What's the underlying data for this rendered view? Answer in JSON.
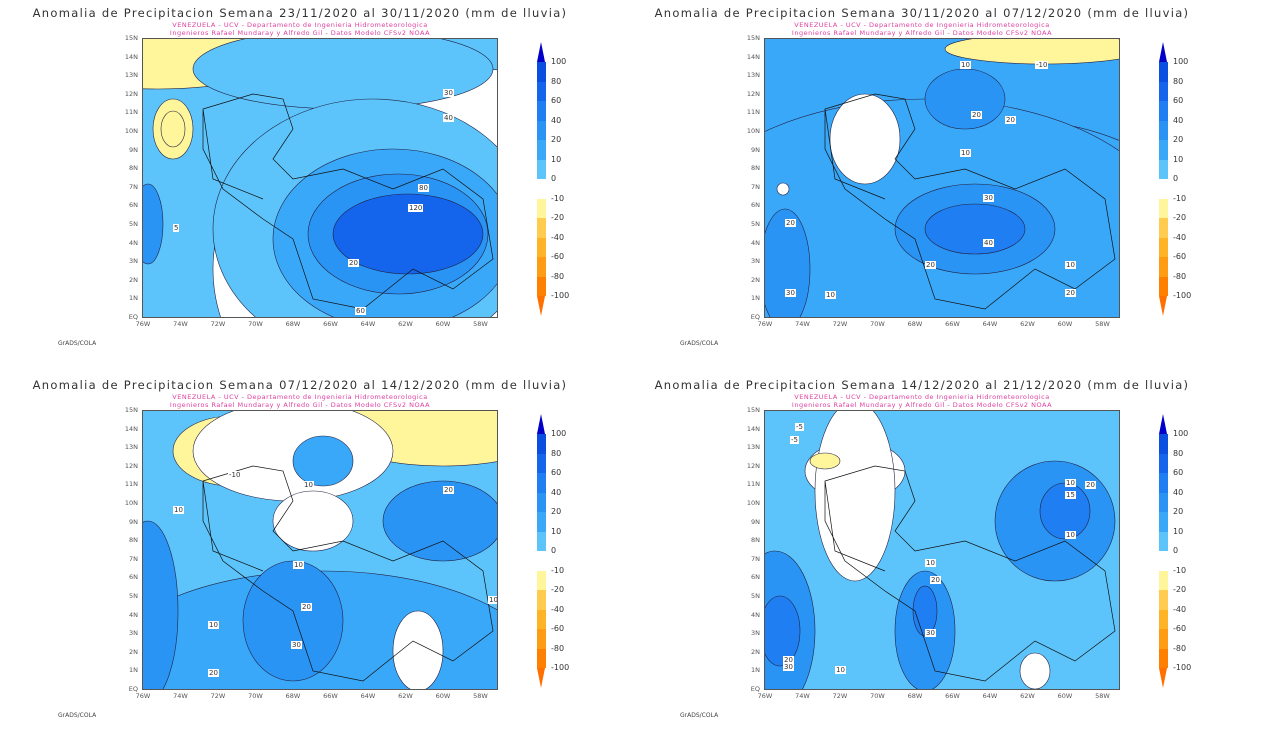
{
  "subtitle_line1": "VENEZUELA - UCV - Departamento de Ingenieria Hidrometeorologica",
  "subtitle_line2": "Ingenieros Rafael Mundaray y Alfredo Gil - Datos Modelo CFSv2 NOAA",
  "credit": "GrADS/COLA",
  "y_ticks": [
    "15N",
    "14N",
    "13N",
    "12N",
    "11N",
    "10N",
    "9N",
    "8N",
    "7N",
    "6N",
    "5N",
    "4N",
    "3N",
    "2N",
    "1N",
    "EQ"
  ],
  "x_ticks": [
    "76W",
    "74W",
    "72W",
    "70W",
    "68W",
    "66W",
    "64W",
    "62W",
    "60W",
    "58W"
  ],
  "colorbar": {
    "labels": [
      "100",
      "80",
      "60",
      "40",
      "20",
      "10",
      "0",
      "-10",
      "-20",
      "-40",
      "-60",
      "-80",
      "-100"
    ],
    "colors": [
      "#0a4fe0",
      "#1464ec",
      "#1e7ef2",
      "#2a94f5",
      "#3aa8f8",
      "#5cc4fb",
      "#ffffff",
      "#fff59a",
      "#ffcc50",
      "#ffb428",
      "#ff9c14",
      "#ff8000"
    ],
    "arrow_top": "#0000c8",
    "arrow_bottom": "#ff7000"
  },
  "panels": [
    {
      "title": "Anomalia de Precipitacion Semana 23/11/2020 al 30/11/2020 (mm de lluvia)",
      "base": "#5cc4fb",
      "contour_labels": [
        "30",
        "40",
        "80",
        "120",
        "20",
        "60",
        "5"
      ]
    },
    {
      "title": "Anomalia de Precipitacion Semana 30/11/2020 al 07/12/2020 (mm de lluvia)",
      "base": "#3aa8f8",
      "contour_labels": [
        "10",
        "20",
        "20",
        "10",
        "30",
        "40",
        "20",
        "10",
        "20",
        "30",
        "20",
        "10",
        "-10"
      ]
    },
    {
      "title": "Anomalia de Precipitacion Semana 07/12/2020 al 14/12/2020 (mm de lluvia)",
      "base": "#5cc4fb",
      "contour_labels": [
        "10",
        "10",
        "20",
        "10",
        "20",
        "30",
        "10",
        "20",
        "10",
        "-10"
      ]
    },
    {
      "title": "Anomalia de Precipitacion Semana 14/12/2020 al 21/12/2020 (mm de lluvia)",
      "base": "#5cc4fb",
      "contour_labels": [
        "-5",
        "-5",
        "10",
        "20",
        "30",
        "20",
        "10",
        "15",
        "10",
        "20",
        "30",
        "10"
      ]
    }
  ]
}
